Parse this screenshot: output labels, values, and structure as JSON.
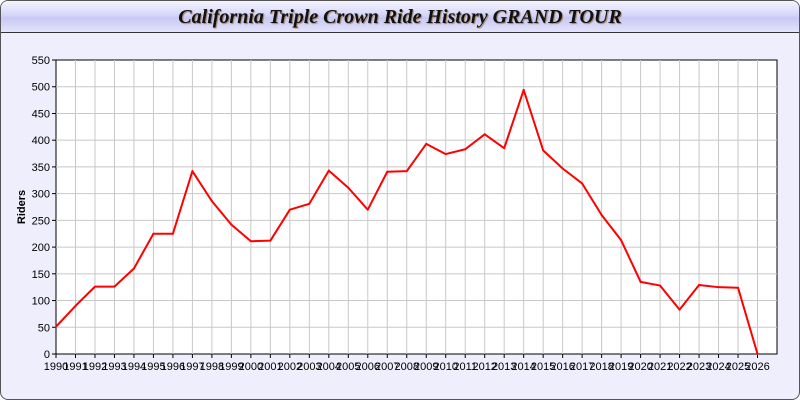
{
  "chart_data": {
    "type": "line",
    "title": "California Triple Crown Ride History GRAND TOUR",
    "xlabel": "",
    "ylabel": "Riders",
    "xlim": [
      1990,
      2027
    ],
    "ylim": [
      0,
      550
    ],
    "yticks": [
      0,
      50,
      100,
      150,
      200,
      250,
      300,
      350,
      400,
      450,
      500,
      550
    ],
    "grid": true,
    "line_color": "#ff0000",
    "x": [
      1990,
      1991,
      1992,
      1993,
      1994,
      1995,
      1996,
      1997,
      1998,
      1999,
      2000,
      2001,
      2002,
      2003,
      2004,
      2005,
      2006,
      2007,
      2008,
      2009,
      2010,
      2011,
      2012,
      2013,
      2014,
      2015,
      2016,
      2017,
      2018,
      2019,
      2020,
      2021,
      2022,
      2023,
      2024,
      2025,
      2026
    ],
    "values": [
      51,
      90,
      126,
      126,
      160,
      225,
      225,
      342,
      286,
      242,
      211,
      212,
      270,
      281,
      343,
      311,
      270,
      341,
      342,
      393,
      374,
      383,
      411,
      385,
      494,
      381,
      347,
      319,
      260,
      213,
      135,
      128,
      83,
      129,
      125,
      124,
      0
    ]
  }
}
